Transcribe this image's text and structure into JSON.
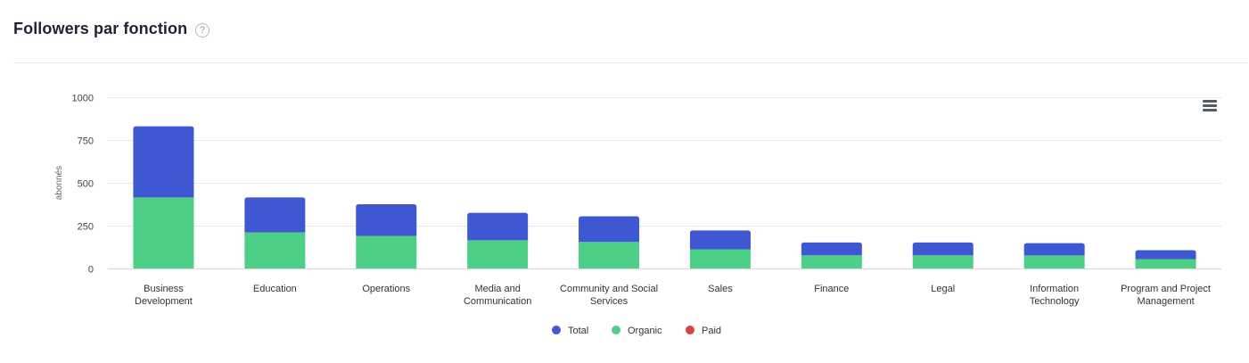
{
  "header": {
    "title": "Followers par fonction",
    "help_glyph": "?"
  },
  "chart_data": {
    "type": "bar",
    "stacked": true,
    "ylabel": "abonnés",
    "xlabel": "",
    "ylim": [
      0,
      1000
    ],
    "yticks": [
      0,
      250,
      500,
      750,
      1000
    ],
    "grid": true,
    "legend_position": "bottom-center",
    "categories": [
      [
        "Business",
        "Development"
      ],
      [
        "Education"
      ],
      [
        "Operations"
      ],
      [
        "Media and",
        "Communication"
      ],
      [
        "Community and Social",
        "Services"
      ],
      [
        "Sales"
      ],
      [
        "Finance"
      ],
      [
        "Legal"
      ],
      [
        "Information",
        "Technology"
      ],
      [
        "Program and Project",
        "Management"
      ]
    ],
    "series": [
      {
        "name": "Total",
        "color": "#3f58d1",
        "values": [
          415,
          205,
          185,
          160,
          150,
          110,
          75,
          75,
          72,
          52
        ]
      },
      {
        "name": "Organic",
        "color": "#4ecf88",
        "values": [
          415,
          210,
          190,
          165,
          155,
          112,
          77,
          77,
          76,
          55
        ]
      },
      {
        "name": "Paid",
        "color": "#d94343",
        "values": [
          0,
          0,
          0,
          0,
          0,
          0,
          0,
          0,
          0,
          0
        ]
      }
    ]
  },
  "toolbar": {
    "menu_icon": "hamburger-menu-icon"
  }
}
